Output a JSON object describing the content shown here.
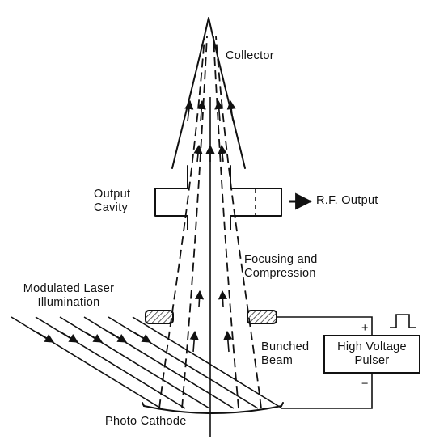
{
  "labels": {
    "collector": "Collector",
    "output_cavity": [
      "Output",
      "Cavity"
    ],
    "rf_output": "R.F. Output",
    "focusing": [
      "Focusing and",
      "Compression"
    ],
    "laser": [
      "Modulated Laser",
      "Illumination"
    ],
    "bunched_beam": [
      "Bunched",
      "Beam"
    ],
    "plus": "+",
    "minus": "−",
    "pulser": [
      "High Voltage",
      "Pulser"
    ],
    "photo_cathode": "Photo Cathode"
  },
  "colors": {
    "ink": "#111111",
    "background": "#ffffff"
  },
  "icons": [
    "arrow-right-icon",
    "square-pulse-icon"
  ]
}
